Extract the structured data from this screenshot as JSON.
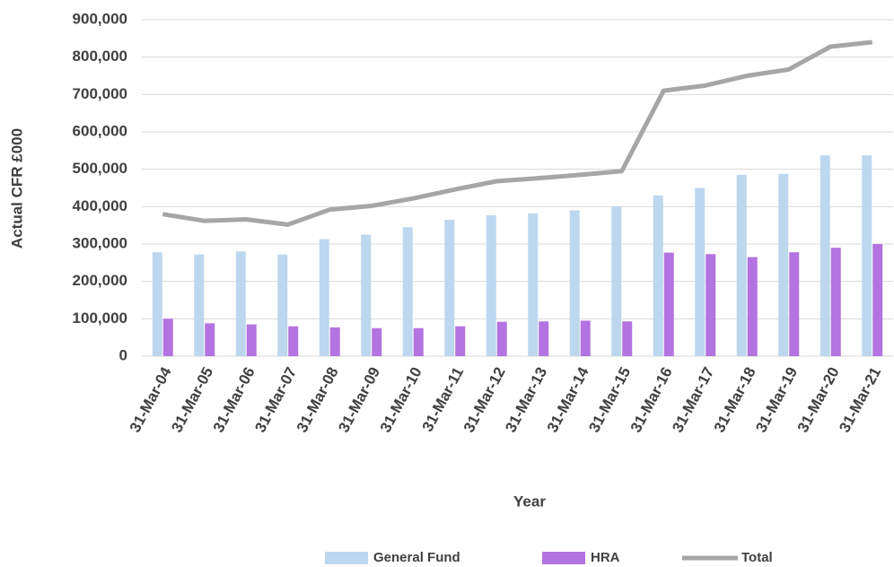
{
  "chart_data": {
    "type": "bar-line",
    "x_label": "Year",
    "y_label": "Actual CFR £000",
    "categories": [
      "31-Mar-04",
      "31-Mar-05",
      "31-Mar-06",
      "31-Mar-07",
      "31-Mar-08",
      "31-Mar-09",
      "31-Mar-10",
      "31-Mar-11",
      "31-Mar-12",
      "31-Mar-13",
      "31-Mar-14",
      "31-Mar-15",
      "31-Mar-16",
      "31-Mar-17",
      "31-Mar-18",
      "31-Mar-19",
      "31-Mar-20",
      "31-Mar-21"
    ],
    "series": [
      {
        "name": "General Fund",
        "type": "bar",
        "color": "#bdd7ee",
        "values": [
          278000,
          272000,
          280000,
          272000,
          313000,
          325000,
          345000,
          365000,
          377000,
          382000,
          390000,
          400000,
          430000,
          450000,
          485000,
          488000,
          537000,
          537000
        ]
      },
      {
        "name": "HRA",
        "type": "bar",
        "color": "#b373e0",
        "values": [
          100000,
          88000,
          85000,
          80000,
          77000,
          75000,
          75000,
          80000,
          92000,
          93000,
          95000,
          93000,
          277000,
          273000,
          265000,
          278000,
          290000,
          300000
        ]
      },
      {
        "name": "Total",
        "type": "line",
        "color": "#a6a6a6",
        "values": [
          380000,
          362000,
          366000,
          352000,
          392000,
          402000,
          422000,
          446000,
          468000,
          476000,
          485000,
          495000,
          710000,
          724000,
          750000,
          767000,
          828000,
          840000
        ]
      }
    ],
    "ylim": [
      0,
      900000
    ],
    "yticks": [
      0,
      {
        "value": 100000,
        "label": "100,000"
      },
      {
        "value": 200000,
        "label": "200,000"
      },
      {
        "value": 300000,
        "label": "300,000"
      },
      {
        "value": 400000,
        "label": "400,000"
      },
      {
        "value": 500000,
        "label": "500,000"
      },
      {
        "value": 600000,
        "label": "600,000"
      },
      {
        "value": 700000,
        "label": "700,000"
      },
      {
        "value": 800000,
        "label": "800,000"
      },
      {
        "value": 900000,
        "label": "900,000"
      }
    ],
    "grid": true,
    "legend": "bottom"
  }
}
